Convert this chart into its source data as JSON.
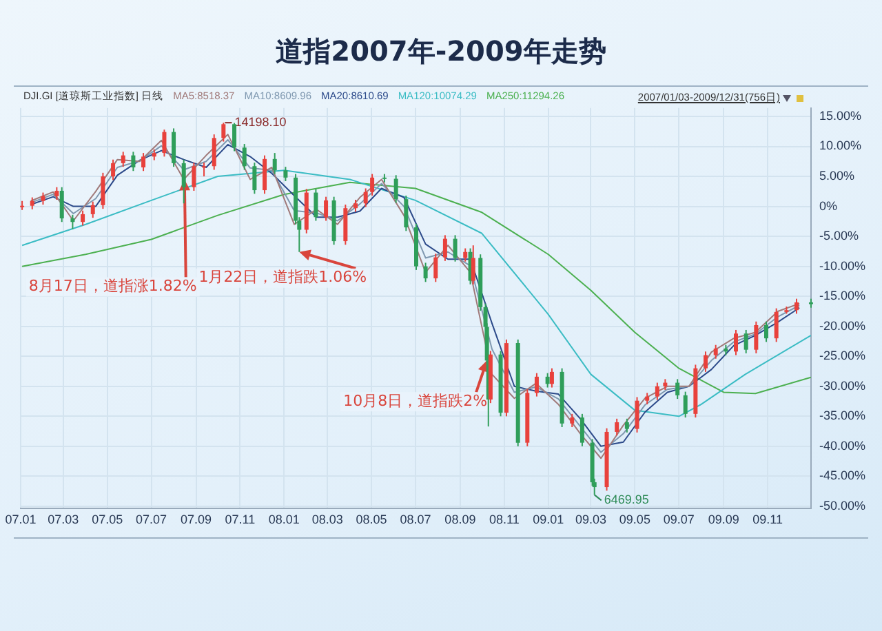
{
  "chart_data": {
    "type": "candlestick",
    "title": "道指2007年-2009年走势",
    "legend_title": "DJI.GI [道琼斯工业指数] 日线",
    "x": [
      "2007-01-03",
      "2007-01-17",
      "2007-02-01",
      "2007-02-20",
      "2007-02-27",
      "2007-03-14",
      "2007-03-28",
      "2007-04-11",
      "2007-04-25",
      "2007-05-09",
      "2007-05-23",
      "2007-06-06",
      "2007-06-20",
      "2007-07-05",
      "2007-07-19",
      "2007-08-01",
      "2007-08-15",
      "2007-08-29",
      "2007-09-12",
      "2007-09-26",
      "2007-10-09",
      "2007-10-24",
      "2007-11-07",
      "2007-11-21",
      "2007-12-05",
      "2007-12-19",
      "2008-01-03",
      "2008-01-17",
      "2008-01-22",
      "2008-02-01",
      "2008-02-14",
      "2008-02-28",
      "2008-03-10",
      "2008-03-26",
      "2008-04-09",
      "2008-04-23",
      "2008-05-02",
      "2008-05-19",
      "2008-06-04",
      "2008-06-18",
      "2008-07-02",
      "2008-07-15",
      "2008-07-29",
      "2008-08-11",
      "2008-08-25",
      "2008-09-08",
      "2008-09-15",
      "2008-09-19",
      "2008-09-29",
      "2008-10-06",
      "2008-10-08",
      "2008-10-10",
      "2008-10-13",
      "2008-10-27",
      "2008-11-04",
      "2008-11-20",
      "2008-12-03",
      "2008-12-16",
      "2008-12-31",
      "2009-01-06",
      "2009-01-20",
      "2009-02-03",
      "2009-02-17",
      "2009-03-03",
      "2009-03-06",
      "2009-03-23",
      "2009-04-06",
      "2009-04-20",
      "2009-05-04",
      "2009-05-18",
      "2009-06-01",
      "2009-06-12",
      "2009-06-29",
      "2009-07-10",
      "2009-07-24",
      "2009-08-07",
      "2009-08-21",
      "2009-09-04",
      "2009-09-18",
      "2009-10-02",
      "2009-10-16",
      "2009-10-30",
      "2009-11-13",
      "2009-11-27",
      "2009-12-11",
      "2009-12-31"
    ],
    "ohlc": [
      [
        0.0,
        0.9,
        -0.6,
        0.1
      ],
      [
        0.1,
        1.5,
        -0.5,
        0.9
      ],
      [
        0.9,
        2.3,
        0.3,
        1.7
      ],
      [
        1.7,
        3.2,
        1.1,
        2.6
      ],
      [
        2.6,
        3.2,
        -2.6,
        -2.0
      ],
      [
        -2.0,
        -1.4,
        -3.8,
        -2.6
      ],
      [
        -2.6,
        -0.7,
        -3.2,
        -1.3
      ],
      [
        -1.3,
        0.8,
        -1.9,
        0.2
      ],
      [
        0.2,
        5.6,
        -0.4,
        5.0
      ],
      [
        5.0,
        7.8,
        4.4,
        7.2
      ],
      [
        7.2,
        9.1,
        6.6,
        8.5
      ],
      [
        8.5,
        9.1,
        5.9,
        6.5
      ],
      [
        6.5,
        8.9,
        5.9,
        8.3
      ],
      [
        8.3,
        9.5,
        7.7,
        8.9
      ],
      [
        8.9,
        12.8,
        8.3,
        12.4
      ],
      [
        12.4,
        13.0,
        6.6,
        7.2
      ],
      [
        7.2,
        7.8,
        0.5,
        3.2
      ],
      [
        3.2,
        7.3,
        2.6,
        6.7
      ],
      [
        6.7,
        7.3,
        5.0,
        6.7
      ],
      [
        6.7,
        12.0,
        6.1,
        11.4
      ],
      [
        11.4,
        13.95,
        10.8,
        13.7
      ],
      [
        13.7,
        13.9,
        9.2,
        9.8
      ],
      [
        9.8,
        10.4,
        6.1,
        6.7
      ],
      [
        6.7,
        7.3,
        2.1,
        2.7
      ],
      [
        2.7,
        8.5,
        2.1,
        7.9
      ],
      [
        7.9,
        8.9,
        5.4,
        6.0
      ],
      [
        6.0,
        6.6,
        4.2,
        4.8
      ],
      [
        4.8,
        5.4,
        -3.0,
        -2.4
      ],
      [
        -2.4,
        -1.8,
        -7.6,
        -3.9
      ],
      [
        -3.9,
        2.9,
        -4.5,
        2.3
      ],
      [
        2.3,
        2.9,
        -2.4,
        -1.8
      ],
      [
        -1.8,
        1.6,
        -2.4,
        1.0
      ],
      [
        1.0,
        1.6,
        -6.4,
        -5.8
      ],
      [
        -5.8,
        0.3,
        -6.4,
        -0.3
      ],
      [
        -0.3,
        1.1,
        -0.9,
        0.5
      ],
      [
        0.5,
        3.0,
        -0.1,
        2.4
      ],
      [
        2.4,
        5.4,
        1.8,
        4.8
      ],
      [
        4.8,
        5.4,
        4.0,
        4.6
      ],
      [
        4.6,
        5.2,
        0.6,
        1.2
      ],
      [
        1.2,
        1.8,
        -4.1,
        -3.5
      ],
      [
        -3.5,
        -2.9,
        -10.6,
        -10.0
      ],
      [
        -10.0,
        -9.4,
        -12.6,
        -12.0
      ],
      [
        -12.0,
        -7.9,
        -12.6,
        -8.5
      ],
      [
        -8.5,
        -4.8,
        -9.1,
        -5.4
      ],
      [
        -5.4,
        -4.8,
        -9.2,
        -8.6
      ],
      [
        -8.6,
        -7.0,
        -9.2,
        -7.6
      ],
      [
        -7.6,
        -7.0,
        -13.0,
        -12.4
      ],
      [
        -12.4,
        -6.5,
        -13.0,
        -8.6
      ],
      [
        -8.6,
        -8.0,
        -17.4,
        -16.8
      ],
      [
        -16.8,
        -16.2,
        -22.0,
        -20.1
      ],
      [
        -20.1,
        -19.5,
        -26.3,
        -25.7
      ],
      [
        -25.7,
        -25.1,
        -36.7,
        -32.2
      ],
      [
        -32.2,
        -24.1,
        -32.8,
        -24.7
      ],
      [
        -24.7,
        -24.1,
        -35.0,
        -34.4
      ],
      [
        -34.4,
        -22.2,
        -35.0,
        -22.8
      ],
      [
        -22.8,
        -22.2,
        -40.0,
        -39.4
      ],
      [
        -39.4,
        -30.5,
        -40.0,
        -31.1
      ],
      [
        -31.1,
        -27.8,
        -31.7,
        -28.4
      ],
      [
        -28.4,
        -27.8,
        -30.2,
        -29.6
      ],
      [
        -29.6,
        -27.0,
        -30.2,
        -27.6
      ],
      [
        -27.6,
        -27.0,
        -36.8,
        -36.2
      ],
      [
        -36.2,
        -34.6,
        -36.8,
        -35.2
      ],
      [
        -35.2,
        -34.6,
        -40.0,
        -39.4
      ],
      [
        -39.4,
        -38.8,
        -46.6,
        -46.0
      ],
      [
        -46.0,
        -45.4,
        -48.1,
        -46.8
      ],
      [
        -46.8,
        -37.0,
        -47.4,
        -37.6
      ],
      [
        -37.6,
        -35.4,
        -38.2,
        -36.0
      ],
      [
        -36.0,
        -35.4,
        -37.7,
        -37.1
      ],
      [
        -37.1,
        -31.8,
        -37.7,
        -32.4
      ],
      [
        -32.4,
        -31.1,
        -33.0,
        -31.7
      ],
      [
        -31.7,
        -29.4,
        -32.3,
        -30.0
      ],
      [
        -30.0,
        -28.8,
        -30.6,
        -29.4
      ],
      [
        -29.4,
        -28.8,
        -32.1,
        -31.5
      ],
      [
        -31.5,
        -30.9,
        -35.2,
        -34.6
      ],
      [
        -34.6,
        -26.4,
        -35.2,
        -27.0
      ],
      [
        -27.0,
        -24.2,
        -27.6,
        -24.8
      ],
      [
        -24.8,
        -23.1,
        -25.4,
        -23.7
      ],
      [
        -23.7,
        -23.1,
        -24.8,
        -24.2
      ],
      [
        -24.2,
        -20.6,
        -24.8,
        -21.2
      ],
      [
        -21.2,
        -20.6,
        -24.5,
        -23.9
      ],
      [
        -23.9,
        -19.2,
        -24.5,
        -19.8
      ],
      [
        -19.8,
        -19.2,
        -22.6,
        -22.0
      ],
      [
        -22.0,
        -17.0,
        -22.6,
        -17.6
      ],
      [
        -17.6,
        -16.7,
        -17.9,
        -17.3
      ],
      [
        -17.3,
        -15.4,
        -17.9,
        -16.0
      ],
      [
        -16.0,
        -15.4,
        -16.9,
        -16.3
      ]
    ],
    "colors": [
      "#e8413c",
      "#e8413c",
      "#e8413c",
      "#e8413c",
      "#2f9e5a",
      "#2f9e5a",
      "#e8413c",
      "#e8413c",
      "#e8413c",
      "#e8413c",
      "#e8413c",
      "#2f9e5a",
      "#e8413c",
      "#e8413c",
      "#e8413c",
      "#2f9e5a",
      "#2f9e5a",
      "#e8413c",
      "#e8413c",
      "#e8413c",
      "#e8413c",
      "#2f9e5a",
      "#2f9e5a",
      "#2f9e5a",
      "#e8413c",
      "#2f9e5a",
      "#2f9e5a",
      "#2f9e5a",
      "#2f9e5a",
      "#e8413c",
      "#2f9e5a",
      "#e8413c",
      "#2f9e5a",
      "#e8413c",
      "#e8413c",
      "#e8413c",
      "#e8413c",
      "#2f9e5a",
      "#2f9e5a",
      "#2f9e5a",
      "#2f9e5a",
      "#2f9e5a",
      "#e8413c",
      "#e8413c",
      "#2f9e5a",
      "#e8413c",
      "#2f9e5a",
      "#e8413c",
      "#2f9e5a",
      "#2f9e5a",
      "#2f9e5a",
      "#2f9e5a",
      "#e8413c",
      "#2f9e5a",
      "#e8413c",
      "#2f9e5a",
      "#e8413c",
      "#e8413c",
      "#2f9e5a",
      "#e8413c",
      "#2f9e5a",
      "#e8413c",
      "#2f9e5a",
      "#2f9e5a",
      "#2f9e5a",
      "#e8413c",
      "#e8413c",
      "#2f9e5a",
      "#e8413c",
      "#e8413c",
      "#e8413c",
      "#e8413c",
      "#2f9e5a",
      "#2f9e5a",
      "#e8413c",
      "#e8413c",
      "#e8413c",
      "#2f9e5a",
      "#e8413c",
      "#2f9e5a",
      "#e8413c",
      "#2f9e5a",
      "#e8413c",
      "#e8413c",
      "#e8413c",
      "#2f9e5a"
    ],
    "series": [
      {
        "name": "MA5:8518.37",
        "type": "line",
        "color": "#a07a7a",
        "x": [
          "2007-01-15",
          "2007-02-15",
          "2007-03-15",
          "2007-04-15",
          "2007-05-15",
          "2007-06-15",
          "2007-07-15",
          "2007-08-15",
          "2007-09-15",
          "2007-10-15",
          "2007-11-15",
          "2007-12-15",
          "2008-01-15",
          "2008-02-15",
          "2008-03-15",
          "2008-04-15",
          "2008-05-15",
          "2008-06-15",
          "2008-07-15",
          "2008-08-15",
          "2008-09-15",
          "2008-10-15",
          "2008-11-15",
          "2008-12-15",
          "2009-01-15",
          "2009-02-15",
          "2009-03-15",
          "2009-04-15",
          "2009-05-15",
          "2009-06-15",
          "2009-07-15",
          "2009-08-15",
          "2009-09-15",
          "2009-10-15",
          "2009-11-15",
          "2009-12-15"
        ],
        "values": [
          0.9,
          2.4,
          -2.4,
          2.5,
          7.8,
          7.5,
          11.0,
          4.5,
          8.5,
          12.0,
          4.5,
          6.5,
          -3.0,
          -0.5,
          -3.0,
          1.5,
          4.5,
          -1.5,
          -11.0,
          -6.5,
          -11.0,
          -28.0,
          -32.0,
          -29.5,
          -33.0,
          -38.0,
          -42.0,
          -36.5,
          -32.0,
          -30.0,
          -30.0,
          -24.3,
          -22.0,
          -21.0,
          -17.5,
          -16.2
        ]
      },
      {
        "name": "MA10:8609.96",
        "type": "line",
        "color": "#7f98b0",
        "x": [
          "2007-01-15",
          "2007-02-15",
          "2007-03-15",
          "2007-04-15",
          "2007-05-15",
          "2007-06-15",
          "2007-07-15",
          "2007-08-15",
          "2007-09-15",
          "2007-10-15",
          "2007-11-15",
          "2007-12-15",
          "2008-01-15",
          "2008-02-15",
          "2008-03-15",
          "2008-04-15",
          "2008-05-15",
          "2008-06-15",
          "2008-07-15",
          "2008-08-15",
          "2008-09-15",
          "2008-10-15",
          "2008-11-15",
          "2008-12-15",
          "2009-01-15",
          "2009-02-15",
          "2009-03-15",
          "2009-04-15",
          "2009-05-15",
          "2009-06-15",
          "2009-07-15",
          "2009-08-15",
          "2009-09-15",
          "2009-10-15",
          "2009-11-15",
          "2009-12-15"
        ],
        "values": [
          0.6,
          2.0,
          -1.2,
          1.3,
          6.5,
          7.6,
          10.1,
          6.1,
          7.5,
          11.1,
          6.4,
          6.0,
          -0.7,
          -1.1,
          -2.4,
          0.4,
          3.8,
          0.0,
          -8.6,
          -7.6,
          -9.9,
          -23.8,
          -31.0,
          -30.1,
          -32.1,
          -36.8,
          -41.0,
          -37.9,
          -33.1,
          -30.5,
          -30.0,
          -25.7,
          -22.6,
          -21.3,
          -18.4,
          -16.5
        ]
      },
      {
        "name": "MA20:8610.69",
        "type": "line",
        "color": "#2c4a8a",
        "x": [
          "2007-01-15",
          "2007-02-15",
          "2007-03-15",
          "2007-04-15",
          "2007-05-15",
          "2007-06-15",
          "2007-07-15",
          "2007-08-15",
          "2007-09-15",
          "2007-10-15",
          "2007-11-15",
          "2007-12-15",
          "2008-01-15",
          "2008-02-15",
          "2008-03-15",
          "2008-04-15",
          "2008-05-15",
          "2008-06-15",
          "2008-07-15",
          "2008-08-15",
          "2008-09-15",
          "2008-10-15",
          "2008-11-15",
          "2008-12-15",
          "2009-01-15",
          "2009-02-15",
          "2009-03-15",
          "2009-04-15",
          "2009-05-15",
          "2009-06-15",
          "2009-07-15",
          "2009-08-15",
          "2009-09-15",
          "2009-10-15",
          "2009-11-15",
          "2009-12-15"
        ],
        "values": [
          0.3,
          1.6,
          0.0,
          0.0,
          5.2,
          7.7,
          9.3,
          7.8,
          6.5,
          10.3,
          8.3,
          5.5,
          1.8,
          -1.8,
          -1.8,
          -0.8,
          3.0,
          1.5,
          -6.3,
          -8.8,
          -8.8,
          -19.5,
          -30.0,
          -30.8,
          -31.3,
          -35.5,
          -40.0,
          -39.3,
          -34.3,
          -31.0,
          -30.0,
          -27.2,
          -23.2,
          -21.5,
          -19.3,
          -16.9
        ]
      },
      {
        "name": "MA120:10074.29",
        "type": "line",
        "color": "#3bbcc4",
        "x": [
          "2007-01-03",
          "2007-04-01",
          "2007-07-01",
          "2007-10-01",
          "2008-01-01",
          "2008-04-01",
          "2008-07-01",
          "2008-10-01",
          "2009-01-01",
          "2009-03-01",
          "2009-05-01",
          "2009-07-01",
          "2009-08-01",
          "2009-10-01",
          "2009-12-31"
        ],
        "values": [
          -6.5,
          -3.0,
          1.0,
          5.0,
          6.0,
          4.5,
          1.0,
          -4.5,
          -18.0,
          -28.0,
          -34.0,
          -35.0,
          -33.0,
          -28.0,
          -21.5
        ]
      },
      {
        "name": "MA250:11294.26",
        "type": "line",
        "color": "#4cb050",
        "x": [
          "2007-01-03",
          "2007-04-01",
          "2007-07-01",
          "2007-10-01",
          "2008-01-01",
          "2008-04-01",
          "2008-07-01",
          "2008-10-01",
          "2009-01-01",
          "2009-03-01",
          "2009-05-01",
          "2009-07-01",
          "2009-09-01",
          "2009-10-15",
          "2009-12-31"
        ],
        "values": [
          -10.0,
          -8.0,
          -5.5,
          -1.5,
          2.0,
          4.0,
          3.0,
          -1.0,
          -8.0,
          -14.0,
          -21.0,
          -27.0,
          -31.0,
          -31.2,
          -28.5
        ]
      }
    ],
    "xlim": [
      "2007-01-01",
      "2009-12-31"
    ],
    "xticks": [
      {
        "value": "2007-01-01",
        "label": "07.01"
      },
      {
        "value": "2007-03-01",
        "label": "07.03"
      },
      {
        "value": "2007-05-01",
        "label": "07.05"
      },
      {
        "value": "2007-07-01",
        "label": "07.07"
      },
      {
        "value": "2007-09-01",
        "label": "07.09"
      },
      {
        "value": "2007-11-01",
        "label": "07.11"
      },
      {
        "value": "2008-01-01",
        "label": "08.01"
      },
      {
        "value": "2008-03-01",
        "label": "08.03"
      },
      {
        "value": "2008-05-01",
        "label": "08.05"
      },
      {
        "value": "2008-07-01",
        "label": "08.07"
      },
      {
        "value": "2008-09-01",
        "label": "08.09"
      },
      {
        "value": "2008-11-01",
        "label": "08.11"
      },
      {
        "value": "2009-01-01",
        "label": "09.01"
      },
      {
        "value": "2009-03-01",
        "label": "09.03"
      },
      {
        "value": "2009-05-01",
        "label": "09.05"
      },
      {
        "value": "2009-07-01",
        "label": "09.07"
      },
      {
        "value": "2009-09-01",
        "label": "09.09"
      },
      {
        "value": "2009-11-01",
        "label": "09.11"
      }
    ],
    "ylim": [
      -50.4,
      16.4
    ],
    "yticks": [
      {
        "value": 15,
        "label": "15.00%"
      },
      {
        "value": 10,
        "label": "10.00%"
      },
      {
        "value": 5,
        "label": "5.00%"
      },
      {
        "value": 0,
        "label": "0%"
      },
      {
        "value": -5,
        "label": "-5.00%"
      },
      {
        "value": -10,
        "label": "-10.00%"
      },
      {
        "value": -15,
        "label": "-15.00%"
      },
      {
        "value": -20,
        "label": "-20.00%"
      },
      {
        "value": -25,
        "label": "-25.00%"
      },
      {
        "value": -30,
        "label": "-30.00%"
      },
      {
        "value": -35,
        "label": "-35.00%"
      },
      {
        "value": -40,
        "label": "-40.00%"
      },
      {
        "value": -45,
        "label": "-45.00%"
      },
      {
        "value": -50,
        "label": "-50.00%"
      }
    ],
    "grid": true,
    "marker": "none",
    "line_style": "solid",
    "annotations": [
      {
        "text": "14198.10",
        "x": "2007-10-11",
        "y": 13.95
      },
      {
        "text": "6469.95",
        "x": "2009-03-06",
        "y": -48.1
      },
      {
        "text": "8月17日，道指涨1.82%",
        "x": "2007-08-16",
        "y": 4.5
      },
      {
        "text": "1月22日，道指跌1.06%",
        "x": "2008-01-22",
        "y": -7.6
      },
      {
        "text": "10月8日，道指跌2%",
        "x": "2008-10-08",
        "y": -25.7
      },
      "2007/01/03-2009/12/31(756日)"
    ]
  }
}
